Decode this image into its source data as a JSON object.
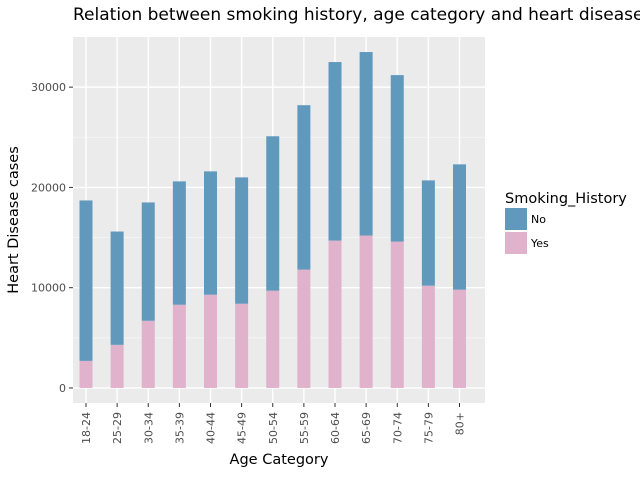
{
  "chart_data": {
    "type": "bar",
    "stacked": true,
    "title": "Relation between smoking history, age category and heart disease",
    "xlabel": "Age Category",
    "ylabel": "Heart Disease cases",
    "ylim": [
      -1500,
      35000
    ],
    "yticks": [
      0,
      10000,
      20000,
      30000
    ],
    "ytick_labels": [
      "0",
      "10000",
      "20000",
      "30000"
    ],
    "grid": true,
    "legend": {
      "title": "Smoking_History",
      "placement": "right"
    },
    "categories": [
      "18-24",
      "25-29",
      "30-34",
      "35-39",
      "40-44",
      "45-49",
      "50-54",
      "55-59",
      "60-64",
      "65-69",
      "70-74",
      "75-79",
      "80+"
    ],
    "series": [
      {
        "name": "Yes",
        "color": "#e0b2cc",
        "values": [
          2700,
          4300,
          6700,
          8300,
          9300,
          8400,
          9700,
          11800,
          14700,
          15200,
          14600,
          10200,
          9800
        ]
      },
      {
        "name": "No",
        "color": "#6199bd",
        "values": [
          16000,
          11300,
          11800,
          12300,
          12300,
          12600,
          15400,
          16400,
          17800,
          18300,
          16600,
          10500,
          12500
        ]
      }
    ],
    "legend_order": [
      "No",
      "Yes"
    ]
  }
}
